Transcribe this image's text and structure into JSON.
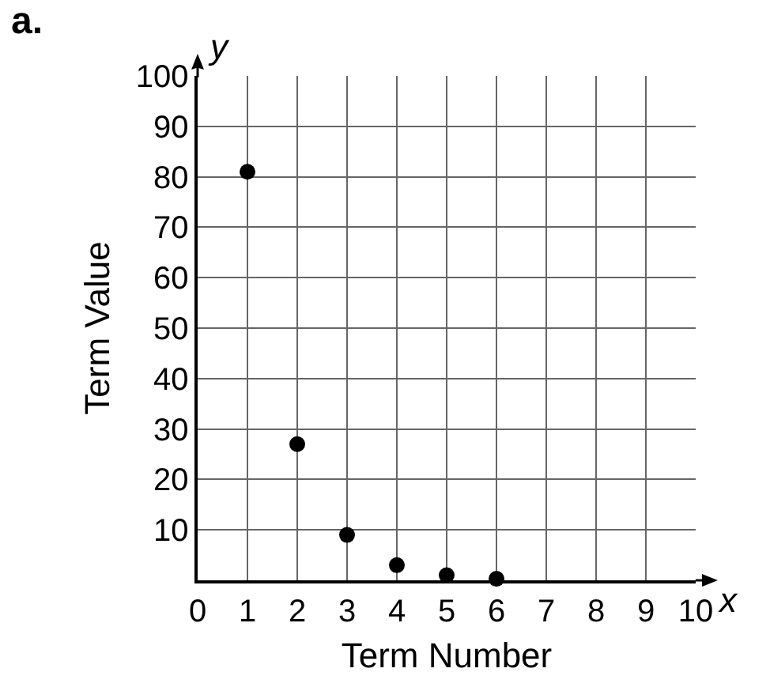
{
  "chart_data": {
    "type": "scatter",
    "title": "a.",
    "xlabel": "Term Number",
    "ylabel": "Term Value",
    "annotations": [
      "y",
      "x"
    ],
    "x": [
      1,
      2,
      3,
      4,
      5,
      6
    ],
    "series": [
      {
        "color": "#000000",
        "values": [
          81,
          27,
          9,
          3,
          1,
          0.3
        ]
      }
    ],
    "xlim": [
      0,
      10
    ],
    "xticks": [
      0,
      1,
      2,
      3,
      4,
      5,
      6,
      7,
      8,
      9,
      10
    ],
    "ylim": [
      0,
      100
    ],
    "yticks": [
      10,
      20,
      30,
      40,
      50,
      60,
      70,
      80,
      90,
      100
    ],
    "grid": true,
    "marker": "circle"
  }
}
